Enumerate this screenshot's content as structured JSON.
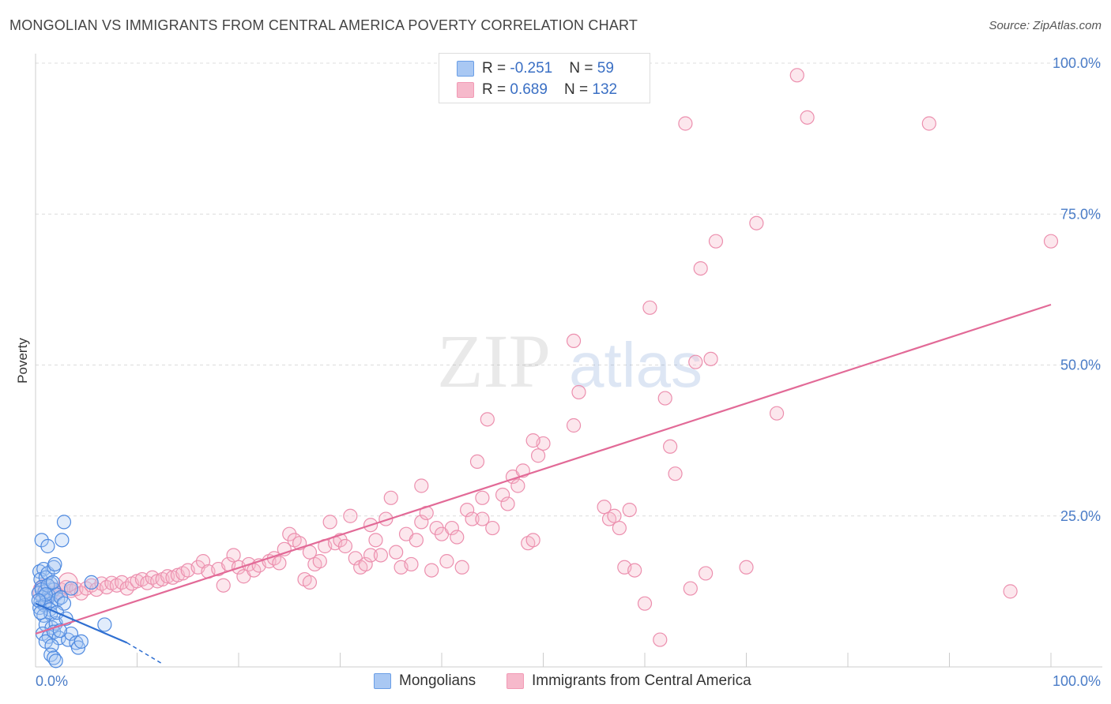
{
  "title": "MONGOLIAN VS IMMIGRANTS FROM CENTRAL AMERICA POVERTY CORRELATION CHART",
  "source": "Source: ZipAtlas.com",
  "watermark": {
    "zip": "ZIP",
    "atlas": "atlas"
  },
  "legend": {
    "rows": [
      {
        "r_label": "R = ",
        "r_value": "-0.251",
        "n_label": "N = ",
        "n_value": "59",
        "color": "#a9c8f3"
      },
      {
        "r_label": "R = ",
        "r_value": "0.689",
        "n_label": "N = ",
        "n_value": "132",
        "color": "#f6b9cb"
      }
    ]
  },
  "bottom_legend": [
    "Mongolians",
    "Immigrants from Central America"
  ],
  "chart_data": {
    "type": "scatter",
    "title": "MONGOLIAN VS IMMIGRANTS FROM CENTRAL AMERICA POVERTY CORRELATION CHART",
    "xlabel": "",
    "ylabel": "Poverty",
    "xlim": [
      0,
      100
    ],
    "ylim": [
      0,
      100
    ],
    "x_ticks_labels": [
      "0.0%",
      "100.0%"
    ],
    "y_ticks": [
      25,
      50,
      75,
      100
    ],
    "y_ticks_labels": [
      "25.0%",
      "50.0%",
      "75.0%",
      "100.0%"
    ],
    "grid": true,
    "legend_position": "top-center",
    "series": [
      {
        "name": "Mongolians",
        "color": "#6a9ee6",
        "trend": {
          "x": [
            0.0,
            9.0
          ],
          "y": [
            10.5,
            4.0
          ],
          "dashed_extension_to": [
            12.5,
            0.5
          ],
          "color": "#2f6fd1"
        },
        "points": [
          [
            0.4,
            15.8
          ],
          [
            0.8,
            16.2
          ],
          [
            0.5,
            14.5
          ],
          [
            1.0,
            14.8
          ],
          [
            1.2,
            15.5
          ],
          [
            0.6,
            13.2
          ],
          [
            1.5,
            13.8
          ],
          [
            0.3,
            12.2
          ],
          [
            0.9,
            12.5
          ],
          [
            1.8,
            12.8
          ],
          [
            0.7,
            11.5
          ],
          [
            1.3,
            11.8
          ],
          [
            2.0,
            12.0
          ],
          [
            0.5,
            10.8
          ],
          [
            1.1,
            11.0
          ],
          [
            1.6,
            10.5
          ],
          [
            2.2,
            11.2
          ],
          [
            0.4,
            9.8
          ],
          [
            0.9,
            10.2
          ],
          [
            1.4,
            9.5
          ],
          [
            0.6,
            12.8
          ],
          [
            1.2,
            13.5
          ],
          [
            2.5,
            11.5
          ],
          [
            0.8,
            8.5
          ],
          [
            1.5,
            8.8
          ],
          [
            0.6,
            21.0
          ],
          [
            1.2,
            20.0
          ],
          [
            2.6,
            21.0
          ],
          [
            1.8,
            16.5
          ],
          [
            1.9,
            17.0
          ],
          [
            2.8,
            24.0
          ],
          [
            1.0,
            7.0
          ],
          [
            1.6,
            6.5
          ],
          [
            2.0,
            7.2
          ],
          [
            0.7,
            5.5
          ],
          [
            1.3,
            5.0
          ],
          [
            1.8,
            5.8
          ],
          [
            2.3,
            4.8
          ],
          [
            3.2,
            4.5
          ],
          [
            1.0,
            4.2
          ],
          [
            1.6,
            3.5
          ],
          [
            1.5,
            2.0
          ],
          [
            1.8,
            1.5
          ],
          [
            2.0,
            1.0
          ],
          [
            3.5,
            5.5
          ],
          [
            4.0,
            4.0
          ],
          [
            4.2,
            3.2
          ],
          [
            4.5,
            4.2
          ],
          [
            2.8,
            10.5
          ],
          [
            3.5,
            13.0
          ],
          [
            5.5,
            14.0
          ],
          [
            6.8,
            7.0
          ],
          [
            1.0,
            12.0
          ],
          [
            0.3,
            11.0
          ],
          [
            2.1,
            9.0
          ],
          [
            1.7,
            14.0
          ],
          [
            0.5,
            9.0
          ],
          [
            2.4,
            6.0
          ],
          [
            3.0,
            8.0
          ]
        ]
      },
      {
        "name": "Immigrants from Central America",
        "color": "#f29ab5",
        "trend": {
          "x": [
            0.0,
            100.0
          ],
          "y": [
            5.5,
            60.0
          ],
          "color": "#e26a97"
        },
        "points": [
          [
            0.6,
            13.0
          ],
          [
            1.0,
            12.5
          ],
          [
            1.5,
            12.0
          ],
          [
            2.0,
            12.3
          ],
          [
            2.5,
            12.8
          ],
          [
            3.0,
            13.2
          ],
          [
            3.5,
            12.6
          ],
          [
            4.0,
            12.9
          ],
          [
            4.5,
            12.2
          ],
          [
            5.0,
            13.0
          ],
          [
            5.5,
            13.5
          ],
          [
            6.0,
            12.8
          ],
          [
            6.5,
            13.8
          ],
          [
            7.0,
            13.2
          ],
          [
            7.5,
            13.9
          ],
          [
            8.0,
            13.5
          ],
          [
            8.5,
            14.0
          ],
          [
            9.0,
            13.0
          ],
          [
            9.5,
            13.8
          ],
          [
            10.0,
            14.2
          ],
          [
            10.5,
            14.5
          ],
          [
            11.0,
            13.9
          ],
          [
            11.5,
            14.8
          ],
          [
            12.0,
            14.2
          ],
          [
            12.5,
            14.5
          ],
          [
            13.0,
            15.0
          ],
          [
            13.5,
            14.8
          ],
          [
            14.0,
            15.2
          ],
          [
            14.5,
            15.5
          ],
          [
            15.0,
            16.0
          ],
          [
            16.0,
            16.5
          ],
          [
            16.5,
            17.5
          ],
          [
            17.0,
            15.8
          ],
          [
            18.0,
            16.2
          ],
          [
            18.5,
            13.5
          ],
          [
            19.0,
            17.0
          ],
          [
            19.5,
            18.5
          ],
          [
            20.0,
            16.5
          ],
          [
            20.5,
            15.0
          ],
          [
            21.0,
            17.0
          ],
          [
            21.5,
            16.0
          ],
          [
            22.0,
            16.8
          ],
          [
            23.0,
            17.5
          ],
          [
            23.5,
            18.0
          ],
          [
            24.0,
            17.2
          ],
          [
            24.5,
            19.5
          ],
          [
            25.0,
            22.0
          ],
          [
            25.5,
            21.0
          ],
          [
            26.0,
            20.5
          ],
          [
            26.5,
            14.5
          ],
          [
            27.0,
            19.0
          ],
          [
            27.5,
            17.0
          ],
          [
            28.0,
            17.5
          ],
          [
            28.5,
            20.0
          ],
          [
            29.0,
            24.0
          ],
          [
            29.5,
            20.5
          ],
          [
            30.0,
            21.0
          ],
          [
            30.5,
            20.0
          ],
          [
            31.0,
            25.0
          ],
          [
            31.5,
            18.0
          ],
          [
            32.0,
            16.5
          ],
          [
            32.5,
            17.0
          ],
          [
            33.0,
            18.5
          ],
          [
            33.5,
            21.0
          ],
          [
            34.0,
            18.5
          ],
          [
            34.5,
            24.5
          ],
          [
            35.0,
            28.0
          ],
          [
            35.5,
            19.0
          ],
          [
            36.0,
            16.5
          ],
          [
            36.5,
            22.0
          ],
          [
            37.0,
            17.0
          ],
          [
            37.5,
            21.0
          ],
          [
            38.0,
            24.0
          ],
          [
            38.5,
            25.5
          ],
          [
            39.0,
            16.0
          ],
          [
            39.5,
            23.0
          ],
          [
            40.0,
            22.0
          ],
          [
            40.5,
            17.5
          ],
          [
            41.0,
            23.0
          ],
          [
            41.5,
            21.5
          ],
          [
            42.0,
            16.5
          ],
          [
            42.5,
            26.0
          ],
          [
            43.0,
            24.5
          ],
          [
            43.5,
            34.0
          ],
          [
            44.0,
            24.5
          ],
          [
            44.5,
            41.0
          ],
          [
            45.0,
            23.0
          ],
          [
            46.0,
            28.5
          ],
          [
            46.5,
            27.0
          ],
          [
            47.0,
            31.5
          ],
          [
            47.5,
            30.0
          ],
          [
            48.0,
            32.5
          ],
          [
            48.5,
            20.5
          ],
          [
            49.0,
            21.0
          ],
          [
            49.5,
            35.0
          ],
          [
            50.0,
            37.0
          ],
          [
            53.0,
            54.0
          ],
          [
            53.5,
            45.5
          ],
          [
            56.0,
            26.5
          ],
          [
            56.5,
            24.5
          ],
          [
            57.0,
            25.0
          ],
          [
            57.5,
            23.0
          ],
          [
            58.0,
            16.5
          ],
          [
            59.0,
            16.0
          ],
          [
            60.0,
            10.5
          ],
          [
            60.5,
            59.5
          ],
          [
            61.5,
            4.5
          ],
          [
            62.0,
            44.5
          ],
          [
            62.5,
            36.5
          ],
          [
            63.0,
            32.0
          ],
          [
            64.0,
            90.0
          ],
          [
            64.5,
            13.0
          ],
          [
            65.0,
            50.5
          ],
          [
            65.5,
            66.0
          ],
          [
            66.0,
            15.5
          ],
          [
            66.5,
            51.0
          ],
          [
            67.0,
            70.5
          ],
          [
            70.0,
            16.5
          ],
          [
            71.0,
            73.5
          ],
          [
            73.0,
            42.0
          ],
          [
            75.0,
            98.0
          ],
          [
            76.0,
            91.0
          ],
          [
            88.0,
            90.0
          ],
          [
            96.0,
            12.5
          ],
          [
            100.0,
            70.5
          ],
          [
            53.0,
            40.0
          ],
          [
            49.0,
            37.5
          ],
          [
            38.0,
            30.0
          ],
          [
            27.0,
            14.0
          ],
          [
            33.0,
            23.5
          ],
          [
            58.5,
            26.0
          ],
          [
            44.0,
            28.0
          ]
        ]
      }
    ]
  }
}
